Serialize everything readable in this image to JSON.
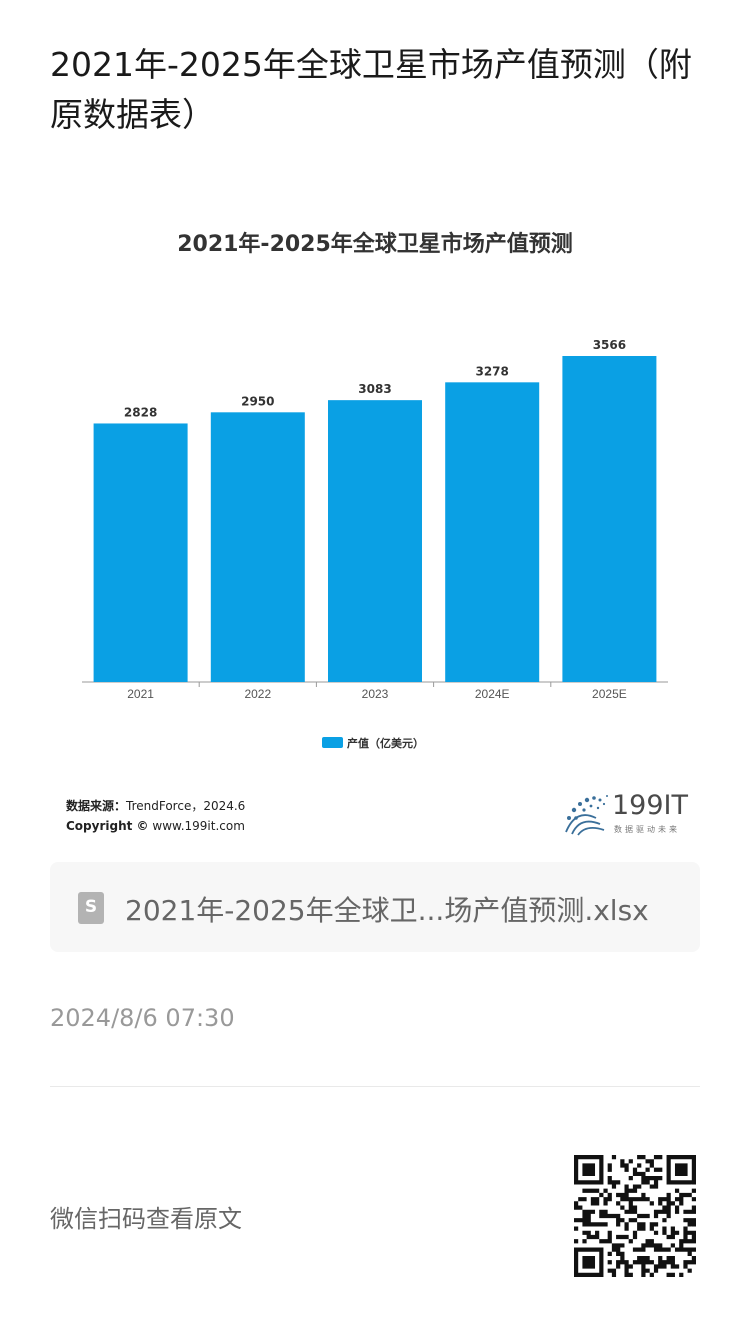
{
  "article": {
    "title": "2021年-2025年全球卫星市场产值预测（附原数据表）"
  },
  "chart_data": {
    "type": "bar",
    "title": "2021年-2025年全球卫星市场产值预测",
    "categories": [
      "2021",
      "2022",
      "2023",
      "2024E",
      "2025E"
    ],
    "series": [
      {
        "name": "产值（亿美元）",
        "values": [
          2828,
          2950,
          3083,
          3278,
          3566
        ]
      }
    ],
    "ylim": [
      0,
      3566
    ],
    "grid": false,
    "legend": "bottom-center",
    "bar_color": "#0aa0e4"
  },
  "source": {
    "label": "数据来源：",
    "text": "TrendForce，2024.6",
    "copyright_label": "Copyright ©",
    "copyright_text": "www.199it.com"
  },
  "logo": {
    "text": "199IT",
    "tagline": "数据驱动未来"
  },
  "file": {
    "icon": "spreadsheet-file-icon",
    "icon_glyph": "S",
    "name": "2021年-2025年全球卫...场产值预测.xlsx"
  },
  "meta": {
    "date": "2024/8/6 07:30",
    "scan_text": "微信扫码查看原文"
  }
}
